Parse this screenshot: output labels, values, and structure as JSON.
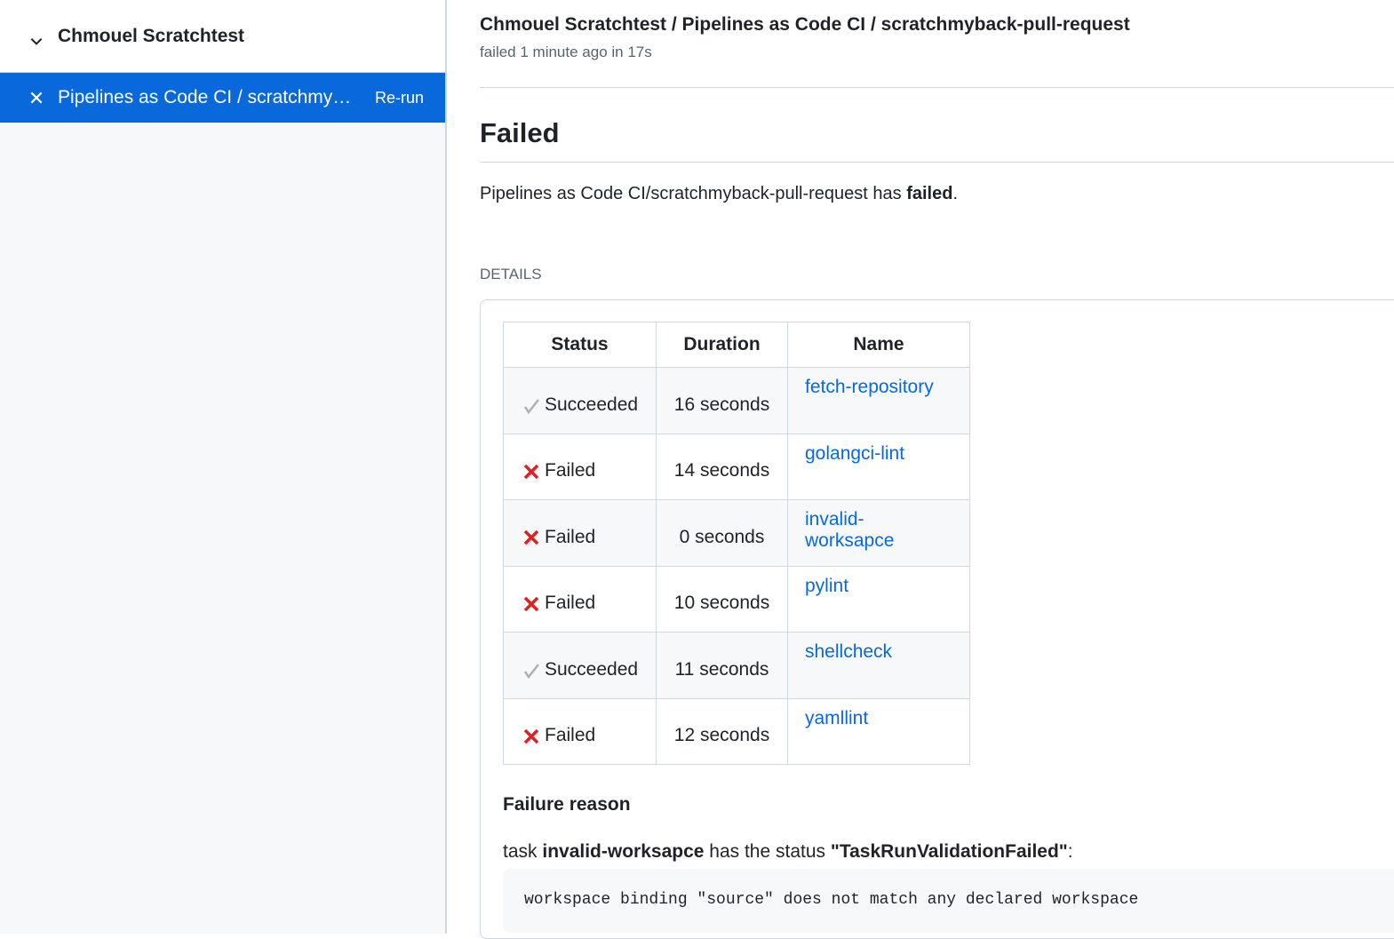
{
  "sidebar": {
    "repo": "Chmouel Scratchtest",
    "item_label": "Pipelines as Code CI / scratchmyback-pull-request",
    "rerun": "Re-run"
  },
  "header": {
    "title": "Chmouel Scratchtest / Pipelines as Code CI / scratchmyback-pull-request",
    "subtitle": "failed 1 minute ago in 17s"
  },
  "main": {
    "heading": "Failed",
    "summary_prefix": "Pipelines as Code CI/scratchmyback-pull-request has ",
    "summary_bold": "failed",
    "summary_suffix": ".",
    "details_label": "DETAILS",
    "table": {
      "headers": [
        "Status",
        "Duration",
        "Name"
      ],
      "rows": [
        {
          "status": "Succeeded",
          "icon": "check",
          "duration": "16 seconds",
          "name": "fetch-repository"
        },
        {
          "status": "Failed",
          "icon": "x",
          "duration": "14 seconds",
          "name": "golangci-lint"
        },
        {
          "status": "Failed",
          "icon": "x",
          "duration": "0 seconds",
          "name": "invalid-worksapce"
        },
        {
          "status": "Failed",
          "icon": "x",
          "duration": "10 seconds",
          "name": "pylint"
        },
        {
          "status": "Succeeded",
          "icon": "check",
          "duration": "11 seconds",
          "name": "shellcheck"
        },
        {
          "status": "Failed",
          "icon": "x",
          "duration": "12 seconds",
          "name": "yamllint"
        }
      ]
    },
    "failure_heading": "Failure reason",
    "task_prefix": "task ",
    "task_name": "invalid-worksapce",
    "task_mid": " has the status ",
    "task_status": "\"TaskRunValidationFailed\"",
    "task_suffix": ":",
    "code": "workspace binding \"source\" does not match any declared workspace"
  },
  "colors": {
    "accent": "#0969da",
    "failed": "#e02020",
    "succeeded": "#b0b0b0"
  }
}
